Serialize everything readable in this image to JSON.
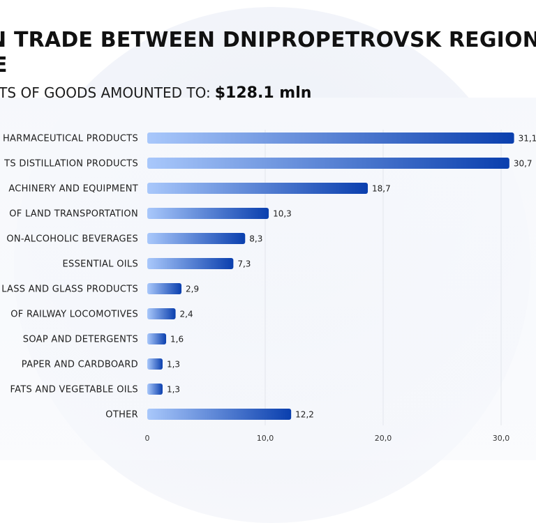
{
  "title": {
    "line1": "N TRADE BETWEEN DNIPROPETROVSK REGION",
    "line2": "E"
  },
  "subtitle": {
    "label": "ORTS OF GOODS AMOUNTED TO:",
    "value": "$128.1 mln"
  },
  "colors": {
    "bar_start": "#a9c8fb",
    "bar_end": "#0a3fae",
    "grid": "#e3e6ec",
    "background_circle": "#f1f3f9"
  },
  "chart_data": {
    "type": "bar",
    "orientation": "horizontal",
    "categories": [
      "HARMACEUTICAL PRODUCTS",
      "TS DISTILLATION PRODUCTS",
      "ACHINERY AND EQUIPMENT",
      "OF LAND TRANSPORTATION",
      "ON-ALCOHOLIC BEVERAGES",
      "ESSENTIAL OILS",
      "LASS AND GLASS PRODUCTS",
      "OF RAILWAY LOCOMOTIVES",
      "SOAP AND DETERGENTS",
      "PAPER AND CARDBOARD",
      "FATS AND VEGETABLE OILS",
      "OTHER"
    ],
    "values": [
      31.1,
      30.7,
      18.7,
      10.3,
      8.3,
      7.3,
      2.9,
      2.4,
      1.6,
      1.3,
      1.3,
      12.2
    ],
    "value_labels": [
      "31,1",
      "30,7",
      "18,7",
      "10,3",
      "8,3",
      "7,3",
      "2,9",
      "2,4",
      "1,6",
      "1,3",
      "1,3",
      "12,2"
    ],
    "xticks": [
      0,
      10,
      20,
      30
    ],
    "xtick_labels": [
      "0",
      "10,0",
      "20,0",
      "30,0"
    ],
    "xlim": [
      0,
      32
    ],
    "grid": true,
    "title": "",
    "xlabel": "",
    "ylabel": ""
  }
}
